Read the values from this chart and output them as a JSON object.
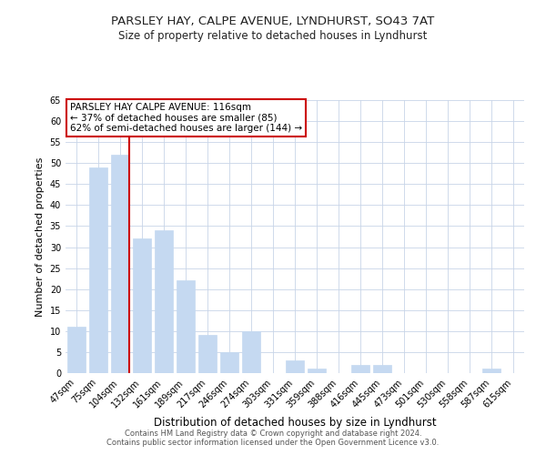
{
  "title": "PARSLEY HAY, CALPE AVENUE, LYNDHURST, SO43 7AT",
  "subtitle": "Size of property relative to detached houses in Lyndhurst",
  "xlabel": "Distribution of detached houses by size in Lyndhurst",
  "ylabel": "Number of detached properties",
  "bar_labels": [
    "47sqm",
    "75sqm",
    "104sqm",
    "132sqm",
    "161sqm",
    "189sqm",
    "217sqm",
    "246sqm",
    "274sqm",
    "303sqm",
    "331sqm",
    "359sqm",
    "388sqm",
    "416sqm",
    "445sqm",
    "473sqm",
    "501sqm",
    "530sqm",
    "558sqm",
    "587sqm",
    "615sqm"
  ],
  "bar_values": [
    11,
    49,
    52,
    32,
    34,
    22,
    9,
    5,
    10,
    0,
    3,
    1,
    0,
    2,
    2,
    0,
    0,
    0,
    0,
    1,
    0
  ],
  "bar_color": "#c5d9f1",
  "vline_index": 2,
  "vline_color": "#cc0000",
  "ylim": [
    0,
    65
  ],
  "yticks": [
    0,
    5,
    10,
    15,
    20,
    25,
    30,
    35,
    40,
    45,
    50,
    55,
    60,
    65
  ],
  "annotation_title": "PARSLEY HAY CALPE AVENUE: 116sqm",
  "annotation_line1": "← 37% of detached houses are smaller (85)",
  "annotation_line2": "62% of semi-detached houses are larger (144) →",
  "annotation_box_color": "#ffffff",
  "annotation_box_edge": "#cc0000",
  "footer_line1": "Contains HM Land Registry data © Crown copyright and database right 2024.",
  "footer_line2": "Contains public sector information licensed under the Open Government Licence v3.0.",
  "background_color": "#ffffff",
  "grid_color": "#c8d4e8",
  "title_fontsize": 9.5,
  "subtitle_fontsize": 8.5,
  "ylabel_fontsize": 8,
  "xlabel_fontsize": 8.5,
  "tick_fontsize": 7,
  "annot_fontsize": 7.5,
  "footer_fontsize": 6
}
